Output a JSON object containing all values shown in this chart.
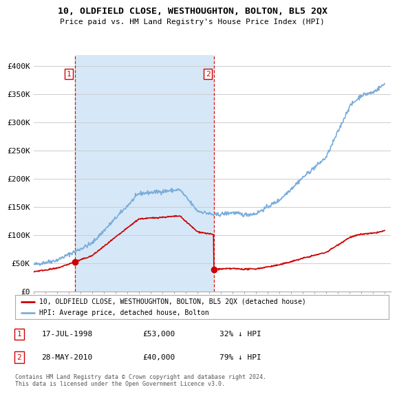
{
  "title": "10, OLDFIELD CLOSE, WESTHOUGHTON, BOLTON, BL5 2QX",
  "subtitle": "Price paid vs. HM Land Registry's House Price Index (HPI)",
  "legend_label_red": "10, OLDFIELD CLOSE, WESTHOUGHTON, BOLTON, BL5 2QX (detached house)",
  "legend_label_blue": "HPI: Average price, detached house, Bolton",
  "footnote": "Contains HM Land Registry data © Crown copyright and database right 2024.\nThis data is licensed under the Open Government Licence v3.0.",
  "transaction1_date": "17-JUL-1998",
  "transaction1_price": "£53,000",
  "transaction1_hpi": "32% ↓ HPI",
  "transaction1_year": 1998.54,
  "transaction1_value": 53000,
  "transaction2_date": "28-MAY-2010",
  "transaction2_price": "£40,000",
  "transaction2_hpi": "79% ↓ HPI",
  "transaction2_year": 2010.41,
  "transaction2_value": 40000,
  "hpi_color": "#7aaddc",
  "price_color": "#cc0000",
  "vline_color": "#cc0000",
  "dot_color": "#cc0000",
  "shade_color": "#d6e8f7",
  "background_color": "#ffffff",
  "grid_color": "#cccccc",
  "ylim": [
    0,
    420000
  ],
  "xlim_start": 1995,
  "xlim_end": 2025.5,
  "yticks": [
    0,
    50000,
    100000,
    150000,
    200000,
    250000,
    300000,
    350000,
    400000
  ],
  "ytick_labels": [
    "£0",
    "£50K",
    "£100K",
    "£150K",
    "£200K",
    "£250K",
    "£300K",
    "£350K",
    "£400K"
  ],
  "xticks": [
    1995,
    1996,
    1997,
    1998,
    1999,
    2000,
    2001,
    2002,
    2003,
    2004,
    2005,
    2006,
    2007,
    2008,
    2009,
    2010,
    2011,
    2012,
    2013,
    2014,
    2015,
    2016,
    2017,
    2018,
    2019,
    2020,
    2021,
    2022,
    2023,
    2024,
    2025
  ]
}
